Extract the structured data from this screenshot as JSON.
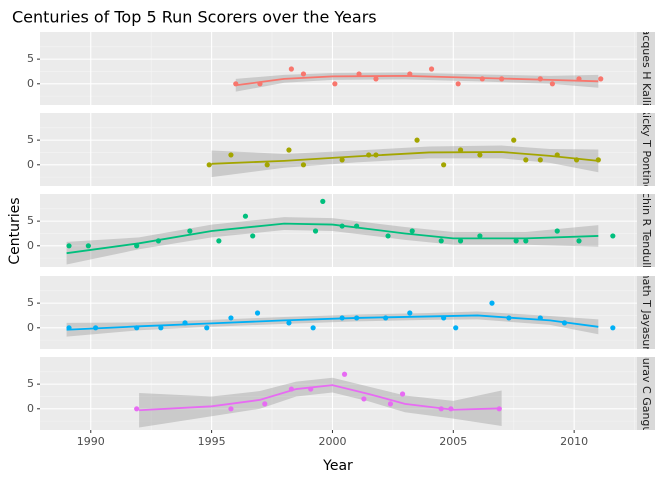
{
  "chart_data": {
    "type": "scatter",
    "title": "Centuries of Top 5 Run Scorers over the Years",
    "x_label": "Year",
    "y_label": "Centuries",
    "xlim": [
      1987.9,
      2012.6
    ],
    "xticks": [
      1990,
      1995,
      2000,
      2005,
      2010
    ],
    "ylim": [
      -4.3,
      10.5
    ],
    "yticks": [
      0,
      5
    ],
    "grid": true,
    "series": [
      {
        "name": "Jacques H Kallis",
        "color": "#F8766D",
        "x": [
          1996,
          1997,
          1998.3,
          1998.8,
          2000.1,
          2001.1,
          2001.8,
          2003.2,
          2004.1,
          2005.2,
          2006.2,
          2007,
          2008.6,
          2009.1,
          2010.2,
          2011.1
        ],
        "values": [
          0,
          0,
          3,
          2,
          0,
          2,
          1,
          2,
          3,
          0,
          1,
          1,
          1,
          0,
          1,
          1
        ],
        "smooth_x": [
          1996,
          1998,
          2000,
          2003,
          2006,
          2009,
          2011
        ],
        "smooth": [
          -0.3,
          1,
          1.5,
          1.6,
          1.2,
          0.8,
          0.5
        ],
        "smooth_lower": [
          -1.6,
          0.2,
          0.8,
          0.9,
          0.5,
          0,
          -0.8
        ],
        "smooth_upper": [
          1,
          1.8,
          2.2,
          2.3,
          1.9,
          1.6,
          1.8
        ]
      },
      {
        "name": "Ricky T Ponting",
        "color": "#A3A500",
        "x": [
          1994.9,
          1995.8,
          1997.3,
          1998.2,
          1998.8,
          2000.4,
          2001.5,
          2001.8,
          2003.5,
          2004.6,
          2005.3,
          2006.1,
          2007.5,
          2008,
          2008.6,
          2009.3,
          2010.1,
          2011
        ],
        "values": [
          0,
          2,
          0,
          3,
          0,
          1,
          2,
          2,
          5,
          0,
          3,
          2,
          5,
          1,
          1,
          2,
          1,
          1
        ],
        "smooth_x": [
          1995,
          1998,
          2001,
          2004,
          2007,
          2009,
          2011
        ],
        "smooth": [
          0.2,
          0.8,
          1.7,
          2.5,
          2.6,
          1.8,
          0.8
        ],
        "smooth_lower": [
          -2.5,
          -0.6,
          0.5,
          1.3,
          1.3,
          0.4,
          -1.5
        ],
        "smooth_upper": [
          2.9,
          2.2,
          2.9,
          3.7,
          3.9,
          3.2,
          3.1
        ]
      },
      {
        "name": "Sachin R Tendulkar",
        "color": "#00BF7D",
        "x": [
          1989.1,
          1989.9,
          1991.9,
          1992.8,
          1994.1,
          1995.3,
          1996.4,
          1996.7,
          1999.3,
          1999.6,
          2000.4,
          2001,
          2002.3,
          2003.3,
          2004.5,
          2005.3,
          2006.1,
          2007.6,
          2008,
          2009.3,
          2010.2,
          2011.6
        ],
        "values": [
          0,
          0,
          0,
          1,
          3,
          1,
          6,
          2,
          3,
          9,
          4,
          4,
          2,
          3,
          1,
          1,
          2,
          1,
          1,
          3,
          1,
          2
        ],
        "smooth_x": [
          1989,
          1992,
          1995,
          1998,
          2000,
          2003,
          2005,
          2008,
          2011
        ],
        "smooth": [
          -1.5,
          0.5,
          3,
          4.5,
          4.3,
          2.5,
          1.5,
          1.5,
          2
        ],
        "smooth_lower": [
          -3.8,
          -0.7,
          1.7,
          3.2,
          3,
          1.2,
          0.2,
          0.2,
          -0.2
        ],
        "smooth_upper": [
          0.8,
          1.7,
          4.3,
          5.8,
          5.6,
          3.8,
          2.8,
          2.8,
          4.2
        ]
      },
      {
        "name": "Sanath T Jayasuriya",
        "color": "#00B0F6",
        "x": [
          1989.1,
          1990.2,
          1991.9,
          1992.9,
          1993.9,
          1994.8,
          1995.8,
          1996.9,
          1998.2,
          1999.2,
          2000.4,
          2001,
          2002.2,
          2003.2,
          2004.6,
          2005.1,
          2006.6,
          2007.3,
          2008.6,
          2009.6,
          2011.6
        ],
        "values": [
          0,
          0,
          0,
          0,
          1,
          0,
          2,
          3,
          1,
          0,
          2,
          2,
          2,
          3,
          2,
          0,
          5,
          2,
          2,
          1,
          0
        ],
        "smooth_x": [
          1989,
          1992,
          1995,
          1998,
          2001,
          2004,
          2006,
          2009,
          2011
        ],
        "smooth": [
          -0.4,
          0.3,
          0.9,
          1.5,
          2,
          2.3,
          2.5,
          1.5,
          0.2
        ],
        "smooth_lower": [
          -1.8,
          -0.5,
          0.2,
          0.8,
          1.3,
          1.6,
          1.7,
          0.6,
          -1.3
        ],
        "smooth_upper": [
          1,
          1.1,
          1.6,
          2.2,
          2.7,
          3,
          3.3,
          2.4,
          1.7
        ]
      },
      {
        "name": "Sourav C Ganguly",
        "color": "#E76BF3",
        "x": [
          1991.9,
          1995.8,
          1997.2,
          1998.3,
          1999.1,
          2000.5,
          2001.3,
          2002.4,
          2002.9,
          2004.5,
          2004.9,
          2006.9
        ],
        "values": [
          0,
          0,
          1,
          4,
          4,
          7,
          2,
          1,
          3,
          0,
          0,
          0
        ],
        "smooth_x": [
          1992,
          1995,
          1997,
          1998.5,
          2000,
          2001.5,
          2003,
          2005,
          2007
        ],
        "smooth": [
          -0.3,
          0.5,
          1.8,
          4,
          4.8,
          3,
          1,
          -0.2,
          0.1
        ],
        "smooth_lower": [
          -3.8,
          -1.5,
          0,
          2.5,
          3.3,
          1.5,
          -0.7,
          -2,
          -3.5
        ],
        "smooth_upper": [
          3.2,
          2.5,
          3.6,
          5.5,
          6.3,
          4.5,
          2.7,
          1.6,
          3.7
        ]
      }
    ]
  }
}
